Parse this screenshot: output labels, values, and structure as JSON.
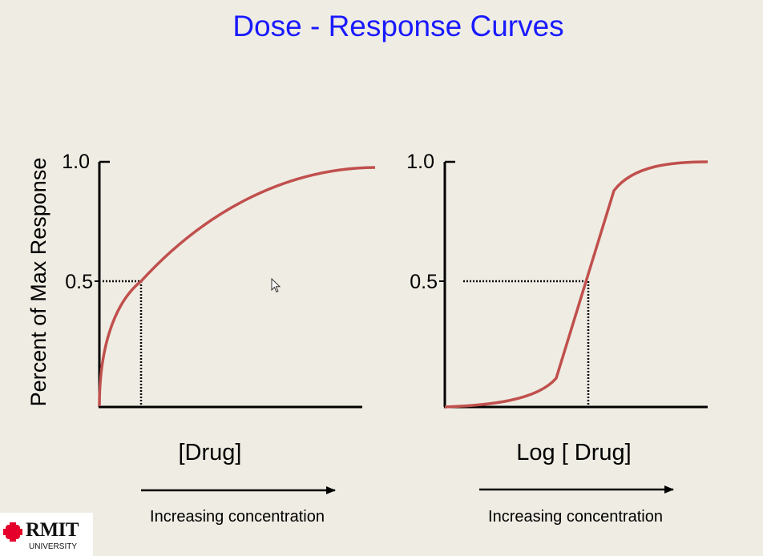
{
  "slide": {
    "title": "Dose - Response Curves",
    "colors": {
      "title": "#1a1aff",
      "curve": "#c0504d",
      "background": "#efece3",
      "axis": "#000000"
    }
  },
  "logo": {
    "name": "RMIT",
    "subtitle": "UNIVERSITY",
    "icon": "rmit-pixel-logo-icon",
    "color": "#e4002b"
  },
  "chart_data": [
    {
      "type": "line",
      "title": "",
      "xlabel": "[Drug]",
      "ylabel": "Percent of Max Response",
      "x_scale": "linear",
      "yticks": [
        {
          "value": 0.5,
          "label": "0.5"
        },
        {
          "value": 1.0,
          "label": "1.0"
        }
      ],
      "ylim": [
        0,
        1
      ],
      "xlim": [
        0,
        1
      ],
      "grid": false,
      "series": [
        {
          "values_x": [
            0,
            0.02,
            0.05,
            0.1,
            0.16,
            0.25,
            0.4,
            0.55,
            0.7,
            0.85,
            1.0
          ],
          "values_y": [
            0,
            0.24,
            0.39,
            0.49,
            0.58,
            0.67,
            0.78,
            0.85,
            0.91,
            0.95,
            0.97
          ]
        }
      ],
      "annotation": {
        "type": "dotted-reference",
        "x": 0.16,
        "y": 0.5
      },
      "arrow_label": "Increasing concentration"
    },
    {
      "type": "line",
      "title": "",
      "xlabel": "Log [ Drug]",
      "ylabel": "",
      "x_scale": "log",
      "yticks": [
        {
          "value": 0.5,
          "label": "0.5"
        },
        {
          "value": 1.0,
          "label": "1.0"
        }
      ],
      "ylim": [
        0,
        1
      ],
      "xlim": [
        0,
        1
      ],
      "grid": false,
      "series": [
        {
          "values_x": [
            0,
            0.15,
            0.3,
            0.42,
            0.5,
            0.55,
            0.66,
            0.75,
            0.88,
            1.0
          ],
          "values_y": [
            0,
            0.01,
            0.05,
            0.12,
            0.3,
            0.5,
            0.88,
            0.95,
            0.99,
            1.0
          ]
        }
      ],
      "annotation": {
        "type": "dotted-reference",
        "x": 0.55,
        "y": 0.5
      },
      "arrow_label": "Increasing concentration"
    }
  ]
}
